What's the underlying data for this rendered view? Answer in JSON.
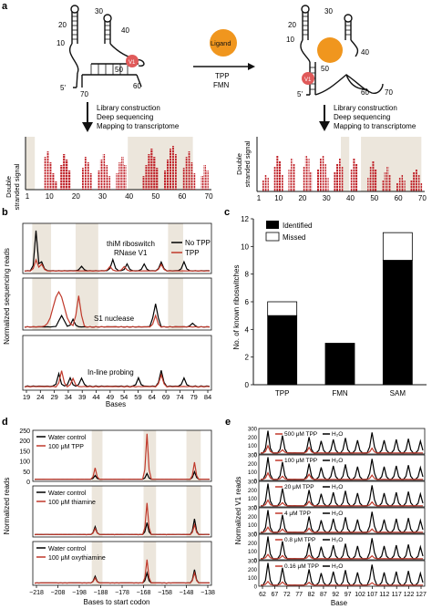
{
  "panels": {
    "a": {
      "label": "a",
      "ligand": "Ligand",
      "arrow_top": "TPP",
      "arrow_bottom": "FMN",
      "v1": "V1",
      "five_prime": "5'",
      "left_numbers": [
        "10",
        "20",
        "30",
        "40",
        "50",
        "60",
        "70"
      ],
      "right_numbers": [
        "10",
        "20",
        "30",
        "40",
        "50",
        "60",
        "70"
      ],
      "steps": [
        "Library construction",
        "Deep sequencing",
        "Mapping to transcriptome"
      ],
      "ylabel_line1": "Double",
      "ylabel_line2": "stranded signal",
      "left_ticks": [
        "1",
        "10",
        "20",
        "30",
        "40",
        "50",
        "60",
        "70"
      ],
      "right_ticks": [
        "1",
        "10",
        "20",
        "30",
        "40",
        "50",
        "60",
        "70"
      ]
    },
    "b": {
      "label": "b",
      "ylabel": "Normalized sequencing reads",
      "xlabel": "Bases",
      "xticks": [
        "19",
        "24",
        "29",
        "34",
        "39",
        "44",
        "49",
        "54",
        "59",
        "64",
        "69",
        "74",
        "79",
        "84"
      ],
      "subtitles": [
        "thiM riboswitch",
        "RNase V1",
        "S1 nuclease",
        "In-line probing"
      ],
      "legend": [
        "No TPP",
        "TPP"
      ]
    },
    "c": {
      "label": "c",
      "ylabel": "No. of known riboswitches",
      "legend": [
        "Identified",
        "Missed"
      ],
      "yticks": [
        "0",
        "2",
        "4",
        "6",
        "8",
        "10",
        "12"
      ]
    },
    "d": {
      "label": "d",
      "ylabel": "Normalized reads",
      "xlabel": "Bases to start codon",
      "yticks": [
        "0",
        "50",
        "100",
        "150",
        "200",
        "250"
      ],
      "xticks": [
        "−218",
        "−208",
        "−198",
        "−188",
        "−178",
        "−168",
        "−158",
        "−148",
        "−138"
      ],
      "legends": [
        [
          "Water control",
          "100 μM TPP"
        ],
        [
          "Water control",
          "100 μM thiamine"
        ],
        [
          "Water control",
          "100 μM oxythiamine"
        ]
      ]
    },
    "e": {
      "label": "e",
      "ylabel": "Normalized V1 reads",
      "xlabel": "Base",
      "yticks": [
        "0",
        "100",
        "200",
        "300"
      ],
      "xticks": [
        "62",
        "67",
        "72",
        "77",
        "82",
        "87",
        "92",
        "97",
        "102",
        "107",
        "112",
        "117",
        "122",
        "127"
      ],
      "conditions": [
        "500 μM TPP",
        "100 μM TPP",
        "20 μM TPP",
        "4 μM TPP",
        "0.8 μM TPP",
        "0.16 μM TPP"
      ],
      "h2o": "H₂O"
    }
  },
  "chart_data": [
    {
      "type": "bar",
      "panel": "c",
      "categories": [
        "TPP",
        "FMN",
        "SAM"
      ],
      "series": [
        {
          "name": "Identified",
          "values": [
            5,
            3,
            9
          ]
        },
        {
          "name": "Missed",
          "values": [
            1,
            0,
            2
          ]
        }
      ],
      "ylim": [
        0,
        12
      ],
      "ylabel": "No. of known riboswitches",
      "colors": {
        "Identified": "#000000",
        "Missed": "#ffffff"
      }
    },
    {
      "type": "line",
      "panel": "b",
      "xlabel": "Bases",
      "ylabel": "Normalized sequencing reads",
      "subplots": [
        "RNase V1",
        "S1 nuclease",
        "In-line probing"
      ],
      "series": [
        {
          "name": "No TPP",
          "color": "#000000"
        },
        {
          "name": "TPP",
          "color": "#c0392b"
        }
      ]
    }
  ]
}
